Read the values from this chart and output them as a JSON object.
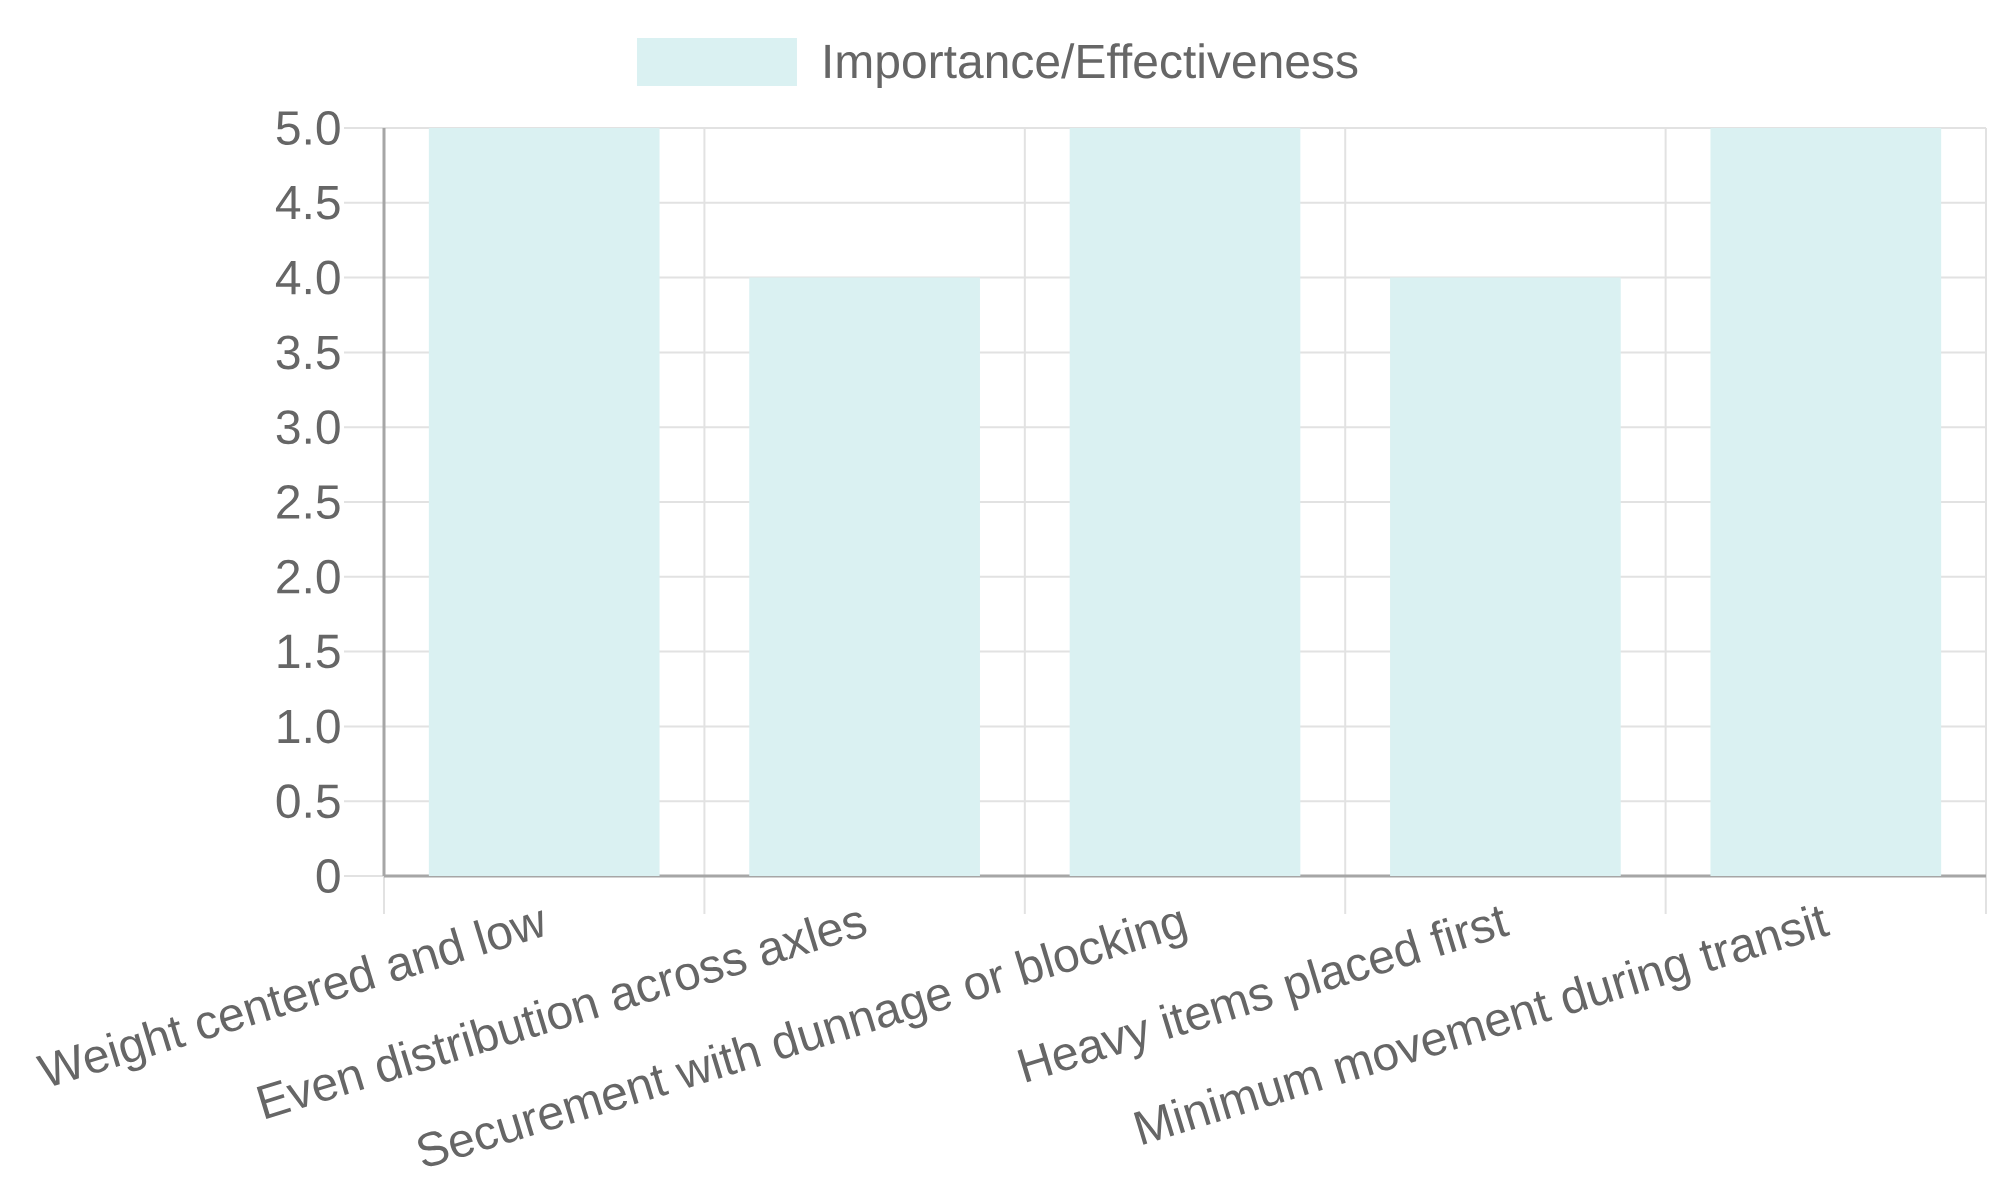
{
  "chart_data": {
    "type": "bar",
    "categories": [
      "Weight centered and low",
      "Even distribution across axles",
      "Securement with dunnage or blocking",
      "Heavy items placed first",
      "Minimum movement during transit"
    ],
    "series": [
      {
        "name": "Importance/Effectiveness",
        "color": "#daf1f2",
        "values": [
          5,
          4,
          5,
          4,
          5
        ]
      }
    ],
    "ylim": [
      0,
      5
    ],
    "yticks": [
      0,
      0.5,
      {
        "value": 1,
        "label": "1.0"
      },
      1.5,
      {
        "value": 2,
        "label": "2.0"
      },
      2.5,
      {
        "value": 3,
        "label": "3.0"
      },
      3.5,
      {
        "value": 4,
        "label": "4.0"
      },
      4.5,
      {
        "value": 5,
        "label": "5.0"
      }
    ],
    "grid": true,
    "legend": "top"
  }
}
